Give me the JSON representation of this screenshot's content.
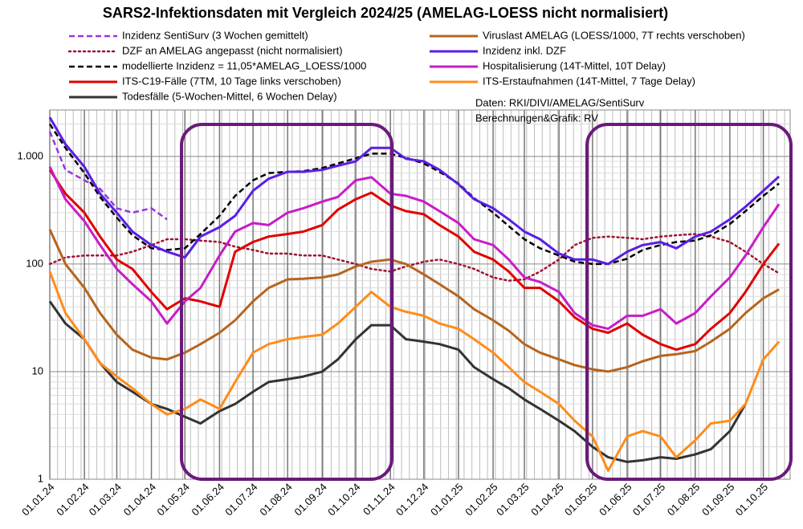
{
  "chart_data": {
    "type": "line",
    "title": "SARS2-Infektionsdaten mit Vergleich 2024/25 (AMELAG-LOESS nicht normalisiert)",
    "annotations": [
      "Daten: RKI/DIVI/AMELAG/SentiSurv",
      "Berechnungen&Grafik: RV"
    ],
    "log_scale": true,
    "grid": true,
    "x": [
      "2024-01-01",
      "2024-01-15",
      "2024-02-01",
      "2024-02-15",
      "2024-03-01",
      "2024-03-15",
      "2024-04-01",
      "2024-04-15",
      "2024-05-01",
      "2024-05-15",
      "2024-06-01",
      "2024-06-15",
      "2024-07-01",
      "2024-07-15",
      "2024-08-01",
      "2024-08-15",
      "2024-09-01",
      "2024-09-15",
      "2024-10-01",
      "2024-10-15",
      "2024-11-01",
      "2024-11-15",
      "2024-12-01",
      "2024-12-15",
      "2025-01-01",
      "2025-01-15",
      "2025-02-01",
      "2025-02-15",
      "2025-03-01",
      "2025-03-15",
      "2025-04-01",
      "2025-04-15",
      "2025-05-01",
      "2025-05-15",
      "2025-06-01",
      "2025-06-15",
      "2025-07-01",
      "2025-07-15",
      "2025-08-01",
      "2025-08-15",
      "2025-09-01",
      "2025-09-15",
      "2025-10-01",
      "2025-10-15"
    ],
    "xlim": [
      "2024-01-01",
      "2025-10-25"
    ],
    "xticks": [
      {
        "value": "2024-01-01",
        "label": "01.01.24"
      },
      {
        "value": "2024-02-01",
        "label": "01.02.24"
      },
      {
        "value": "2024-03-01",
        "label": "01.03.24"
      },
      {
        "value": "2024-04-01",
        "label": "01.04.24"
      },
      {
        "value": "2024-05-01",
        "label": "01.05.24"
      },
      {
        "value": "2024-06-01",
        "label": "01.06.24"
      },
      {
        "value": "2024-07-01",
        "label": "01.07.24"
      },
      {
        "value": "2024-08-01",
        "label": "01.08.24"
      },
      {
        "value": "2024-09-01",
        "label": "01.09.24"
      },
      {
        "value": "2024-10-01",
        "label": "01.10.24"
      },
      {
        "value": "2024-11-01",
        "label": "01.11.24"
      },
      {
        "value": "2024-12-01",
        "label": "01.12.24"
      },
      {
        "value": "2025-01-01",
        "label": "01.01.25"
      },
      {
        "value": "2025-02-01",
        "label": "01.02.25"
      },
      {
        "value": "2025-03-01",
        "label": "01.03.25"
      },
      {
        "value": "2025-04-01",
        "label": "01.04.25"
      },
      {
        "value": "2025-05-01",
        "label": "01.05.25"
      },
      {
        "value": "2025-06-01",
        "label": "01.06.25"
      },
      {
        "value": "2025-07-01",
        "label": "01.07.25"
      },
      {
        "value": "2025-08-01",
        "label": "01.08.25"
      },
      {
        "value": "2025-09-01",
        "label": "01.09.25"
      },
      {
        "value": "2025-10-01",
        "label": "01.10.25"
      }
    ],
    "ylim": [
      1,
      2700
    ],
    "yticks": [
      1,
      10,
      100,
      {
        "value": 1000,
        "label": "1.000"
      }
    ],
    "series": [
      {
        "name": "Inzidenz SentiSurv (3 Wochen gemittelt)",
        "color": "#9a34e0",
        "style": "dashed",
        "values": [
          1700,
          750,
          600,
          500,
          330,
          300,
          330,
          260,
          null,
          null,
          null,
          null,
          null,
          null,
          null,
          null,
          null,
          null,
          null,
          null,
          null,
          null,
          null,
          null,
          null,
          null,
          null,
          null,
          null,
          null,
          null,
          null,
          null,
          null,
          null,
          null,
          null,
          null,
          null,
          null,
          null,
          null,
          null,
          null
        ]
      },
      {
        "name": "DZF an AMELAG angepasst (nicht normalisiert)",
        "color": "#a01030",
        "style": "dotted",
        "values": [
          100,
          115,
          120,
          120,
          120,
          130,
          150,
          170,
          170,
          165,
          160,
          145,
          135,
          125,
          125,
          120,
          120,
          110,
          100,
          90,
          85,
          95,
          105,
          110,
          100,
          90,
          75,
          70,
          72,
          85,
          110,
          150,
          175,
          180,
          175,
          170,
          180,
          185,
          190,
          180,
          160,
          130,
          100,
          82
        ]
      },
      {
        "name": "modellierte Inzidenz = 11,05*AMELAG_LOESS/1000",
        "color": "#000000",
        "style": "dashed",
        "values": [
          2000,
          1200,
          700,
          420,
          270,
          185,
          140,
          135,
          140,
          190,
          280,
          430,
          600,
          700,
          720,
          730,
          780,
          860,
          960,
          1060,
          1060,
          970,
          860,
          720,
          560,
          410,
          300,
          225,
          170,
          140,
          120,
          105,
          100,
          100,
          112,
          135,
          150,
          160,
          165,
          185,
          235,
          310,
          430,
          560
        ]
      },
      {
        "name": "ITS-C19-Fälle (7TM, 10 Tage links verschoben)",
        "color": "#e00000",
        "style": "solid",
        "values": [
          750,
          450,
          300,
          180,
          110,
          90,
          55,
          38,
          48,
          45,
          40,
          130,
          160,
          180,
          190,
          200,
          230,
          320,
          400,
          460,
          350,
          310,
          290,
          230,
          180,
          130,
          110,
          85,
          60,
          60,
          45,
          32,
          25,
          23,
          28,
          22,
          18,
          16,
          18,
          25,
          35,
          55,
          100,
          155
        ]
      },
      {
        "name": "Todesfälle (5-Wochen-Mittel, 6 Wochen Delay)",
        "color": "#333333",
        "style": "solid",
        "values": [
          45,
          28,
          20,
          12,
          8,
          6.5,
          5,
          4.5,
          3.8,
          3.3,
          4.3,
          5,
          6.5,
          8,
          8.5,
          9,
          10,
          13,
          20,
          27,
          27,
          20,
          19,
          18,
          16,
          11,
          8.5,
          7,
          5.5,
          4.5,
          3.5,
          2.8,
          2,
          1.6,
          1.45,
          1.5,
          1.6,
          1.55,
          1.7,
          1.9,
          2.8,
          5,
          null,
          null
        ]
      },
      {
        "name": "Viruslast AMELAG (LOESS/1000, 7T rechts verschoben)",
        "color": "#b5651d",
        "style": "solid",
        "values": [
          210,
          100,
          60,
          35,
          22,
          16,
          13.5,
          13,
          15,
          18,
          23,
          30,
          45,
          60,
          72,
          73,
          75,
          80,
          95,
          105,
          110,
          100,
          80,
          65,
          50,
          38,
          30,
          24,
          18,
          15,
          13,
          11.5,
          10.5,
          10,
          11,
          12.5,
          14,
          14.5,
          15.5,
          19,
          25,
          35,
          48,
          58
        ]
      },
      {
        "name": "Inzidenz inkl. DZF",
        "color": "#5a1ee6",
        "style": "solid",
        "values": [
          2300,
          1300,
          800,
          450,
          300,
          200,
          150,
          130,
          115,
          180,
          220,
          280,
          480,
          620,
          720,
          720,
          750,
          820,
          900,
          1200,
          1200,
          950,
          900,
          750,
          550,
          400,
          330,
          260,
          200,
          170,
          125,
          110,
          110,
          100,
          130,
          150,
          160,
          140,
          180,
          200,
          260,
          340,
          480,
          650
        ]
      },
      {
        "name": "Hospitalisierung (14T-Mittel, 10T Delay)",
        "color": "#c81cc8",
        "style": "solid",
        "values": [
          800,
          400,
          250,
          150,
          90,
          65,
          45,
          28,
          45,
          60,
          120,
          200,
          240,
          230,
          300,
          330,
          380,
          420,
          600,
          640,
          450,
          430,
          380,
          310,
          240,
          170,
          150,
          110,
          75,
          68,
          55,
          35,
          27,
          25,
          33,
          33,
          38,
          28,
          35,
          50,
          75,
          120,
          220,
          360
        ]
      },
      {
        "name": "ITS-Erstaufnahmen (14T-Mittel, 7 Tage Delay)",
        "color": "#ff8c1a",
        "style": "solid",
        "values": [
          85,
          35,
          20,
          12,
          9,
          7,
          5,
          4,
          4.5,
          5.5,
          4.5,
          8,
          15,
          18,
          20,
          21,
          22,
          28,
          40,
          55,
          40,
          36,
          33,
          28,
          25,
          20,
          15,
          11,
          8,
          6.5,
          5,
          3.5,
          2.5,
          1.2,
          2.5,
          2.8,
          2.5,
          1.6,
          2.3,
          3.3,
          3.5,
          5,
          13,
          19
        ]
      }
    ]
  }
}
